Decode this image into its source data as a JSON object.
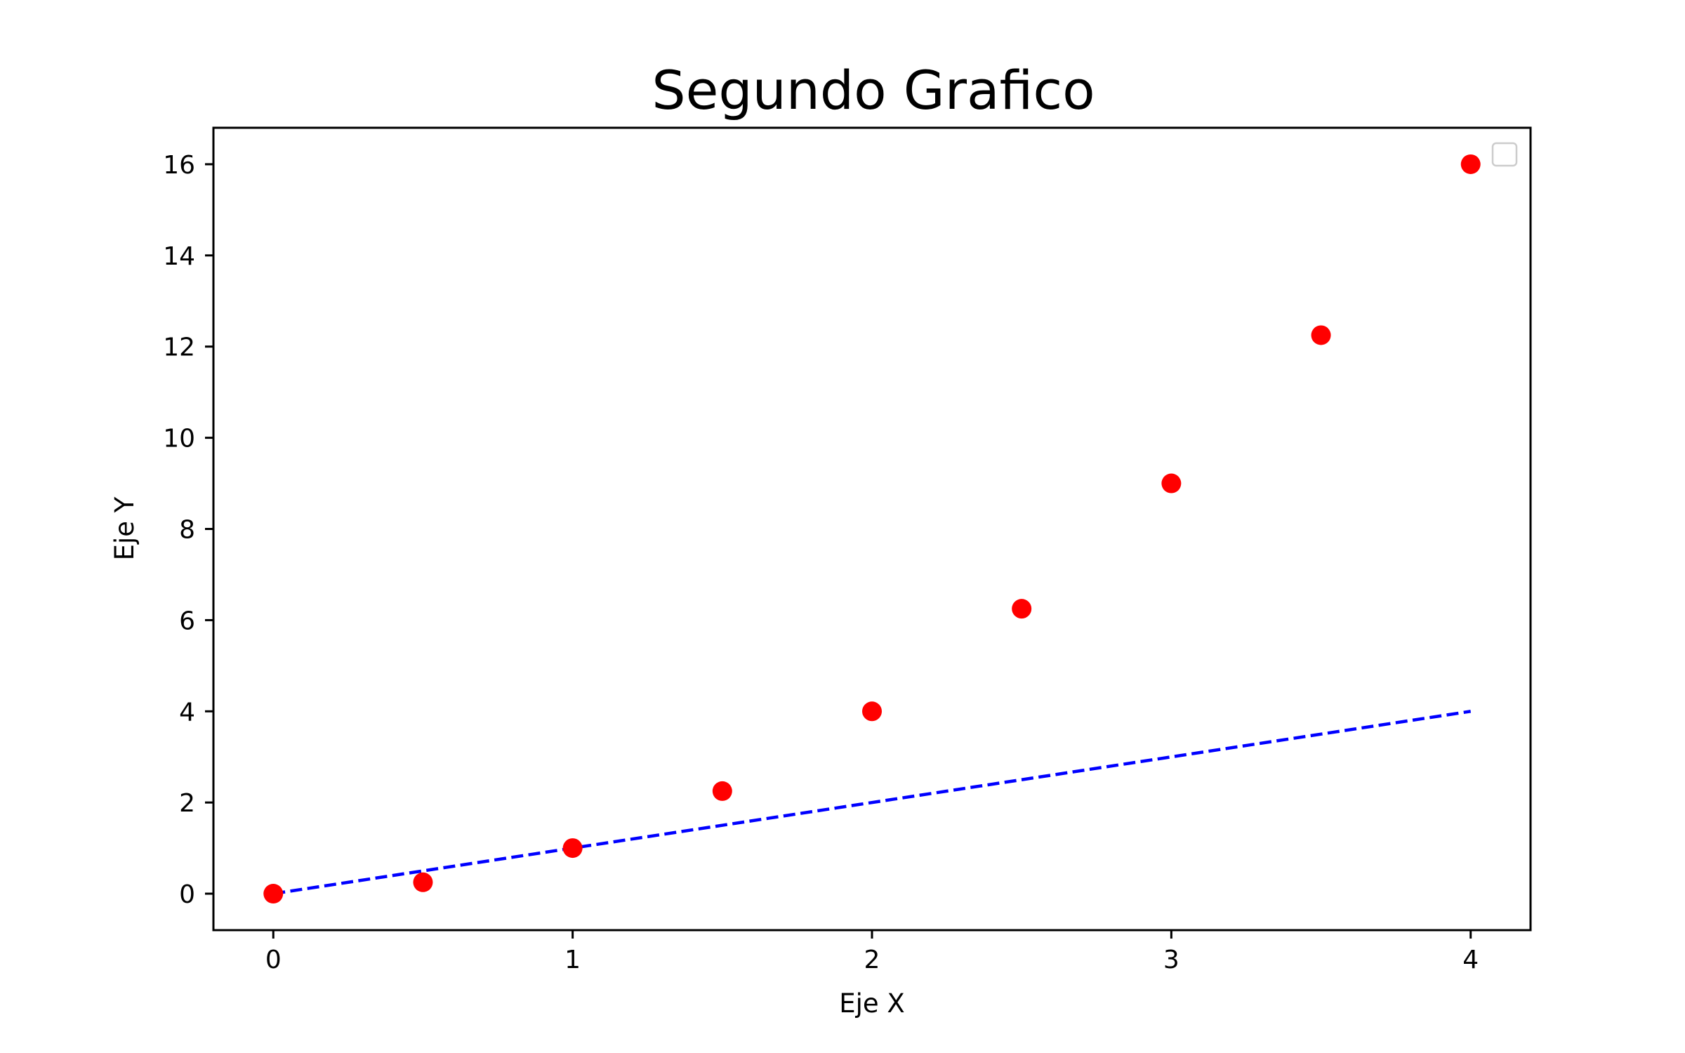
{
  "chart_data": {
    "type": "scatter",
    "title": "Segundo Grafico",
    "xlabel": "Eje X",
    "ylabel": "Eje Y",
    "xlim": [
      -0.2,
      4.2
    ],
    "ylim": [
      -0.8,
      16.8
    ],
    "xticks": [
      0,
      1,
      2,
      3,
      4
    ],
    "xtick_labels": [
      "0",
      "1",
      "2",
      "3",
      "4"
    ],
    "yticks": [
      0,
      2,
      4,
      6,
      8,
      10,
      12,
      14,
      16
    ],
    "ytick_labels": [
      "0",
      "2",
      "4",
      "6",
      "8",
      "10",
      "12",
      "14",
      "16"
    ],
    "grid": false,
    "legend": {
      "location": "top-right",
      "entries": []
    },
    "series": [
      {
        "kind": "line",
        "style": "dashed",
        "color": "#0000ff",
        "x": [
          0,
          4
        ],
        "y": [
          0,
          4
        ]
      },
      {
        "kind": "scatter",
        "marker": "circle",
        "color": "#ff0000",
        "x": [
          0,
          0.5,
          1,
          1.5,
          2,
          2.5,
          3,
          3.5,
          4
        ],
        "y": [
          0,
          0.25,
          1,
          2.25,
          4,
          6.25,
          9,
          12.25,
          16
        ]
      }
    ]
  }
}
